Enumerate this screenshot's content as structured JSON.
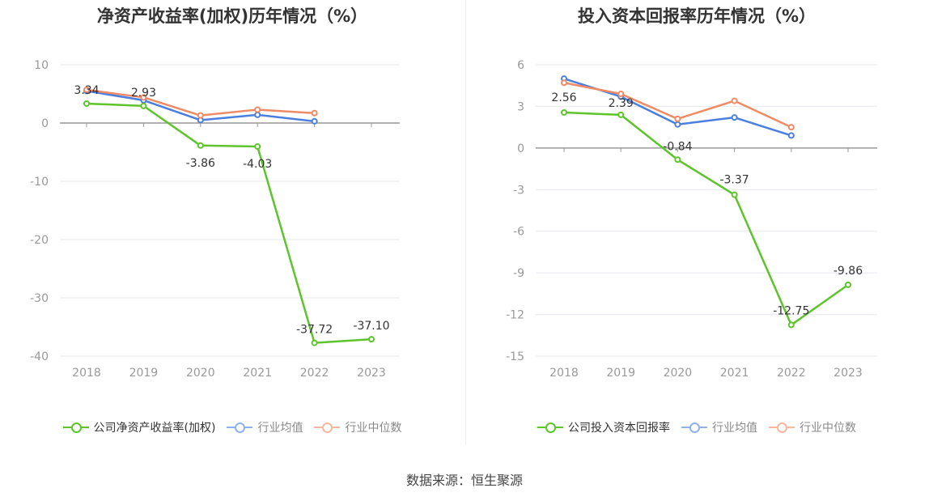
{
  "chart_data": [
    {
      "type": "line",
      "title": "净资产收益率(加权)历年情况（%）",
      "categories": [
        "2018",
        "2019",
        "2020",
        "2021",
        "2022",
        "2023"
      ],
      "ylim": [
        -40,
        10
      ],
      "yticks": [
        10,
        0,
        -10,
        -20,
        -30,
        -40
      ],
      "series": [
        {
          "name": "公司净资产收益率(加权)",
          "color": "#5ec42c",
          "labeled": true,
          "values": [
            3.34,
            2.93,
            -3.86,
            -4.03,
            -37.72,
            -37.1
          ],
          "labels": [
            "3.34",
            "2.93",
            "-3.86",
            "-4.03",
            "-37.72",
            "-37.10"
          ]
        },
        {
          "name": "行业均值",
          "color": "#4a7fe0",
          "labeled": false,
          "values": [
            5.5,
            3.9,
            0.5,
            1.4,
            0.3,
            null
          ]
        },
        {
          "name": "行业中位数",
          "color": "#f08a65",
          "labeled": false,
          "values": [
            5.7,
            4.4,
            1.3,
            2.3,
            1.7,
            null
          ]
        }
      ]
    },
    {
      "type": "line",
      "title": "投入资本回报率历年情况（%）",
      "categories": [
        "2018",
        "2019",
        "2020",
        "2021",
        "2022",
        "2023"
      ],
      "ylim": [
        -15,
        6
      ],
      "yticks": [
        6,
        3,
        0,
        -3,
        -6,
        -9,
        -12,
        -15
      ],
      "series": [
        {
          "name": "公司投入资本回报率",
          "color": "#5ec42c",
          "labeled": true,
          "values": [
            2.56,
            2.39,
            -0.84,
            -3.37,
            -12.75,
            -9.86
          ],
          "labels": [
            "2.56",
            "2.39",
            "-0.84",
            "-3.37",
            "-12.75",
            "-9.86"
          ]
        },
        {
          "name": "行业均值",
          "color": "#4a7fe0",
          "labeled": false,
          "values": [
            5.0,
            3.7,
            1.7,
            2.2,
            0.9,
            null
          ]
        },
        {
          "name": "行业中位数",
          "color": "#f08a65",
          "labeled": false,
          "values": [
            4.7,
            3.9,
            2.1,
            3.4,
            1.5,
            null
          ]
        }
      ]
    }
  ],
  "legend_left": [
    {
      "label": "公司净资产收益率(加权)",
      "color": "#5ec42c"
    },
    {
      "label": "行业均值",
      "color": "#8fb1ee"
    },
    {
      "label": "行业中位数",
      "color": "#f6b7a0"
    }
  ],
  "legend_right": [
    {
      "label": "公司投入资本回报率",
      "color": "#5ec42c"
    },
    {
      "label": "行业均值",
      "color": "#8fb1ee"
    },
    {
      "label": "行业中位数",
      "color": "#f6b7a0"
    }
  ],
  "source": "数据来源：恒生聚源"
}
